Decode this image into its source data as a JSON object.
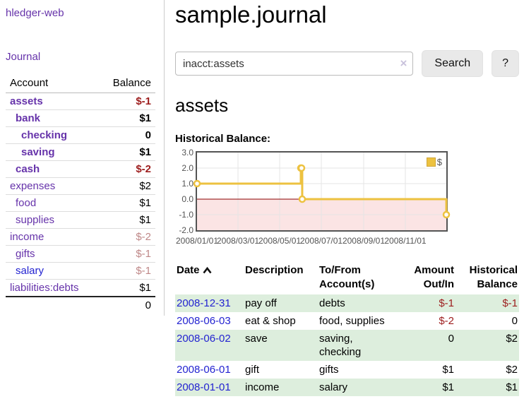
{
  "sidebar": {
    "app_title": "hledger-web",
    "nav": {
      "journal_label": "Journal"
    },
    "accounts_table": {
      "headers": {
        "account": "Account",
        "balance": "Balance"
      },
      "rows": [
        {
          "name": "assets",
          "balance": "$-1",
          "level": 1,
          "bold": true,
          "neg": "strong",
          "link": "purple"
        },
        {
          "name": "bank",
          "balance": "$1",
          "level": 2,
          "bold": true,
          "neg": null,
          "link": "purple"
        },
        {
          "name": "checking",
          "balance": "0",
          "level": 3,
          "bold": true,
          "neg": null,
          "link": "purple"
        },
        {
          "name": "saving",
          "balance": "$1",
          "level": 3,
          "bold": true,
          "neg": null,
          "link": "purple"
        },
        {
          "name": "cash",
          "balance": "$-2",
          "level": 2,
          "bold": true,
          "neg": "strong",
          "link": "purple"
        },
        {
          "name": "expenses",
          "balance": "$2",
          "level": 1,
          "bold": false,
          "neg": null,
          "link": "purple"
        },
        {
          "name": "food",
          "balance": "$1",
          "level": 2,
          "bold": false,
          "neg": null,
          "link": "purple"
        },
        {
          "name": "supplies",
          "balance": "$1",
          "level": 2,
          "bold": false,
          "neg": null,
          "link": "purple"
        },
        {
          "name": "income",
          "balance": "$-2",
          "level": 1,
          "bold": false,
          "neg": "soft",
          "link": "purple"
        },
        {
          "name": "gifts",
          "balance": "$-1",
          "level": 2,
          "bold": false,
          "neg": "soft",
          "link": "purple"
        },
        {
          "name": "salary",
          "balance": "$-1",
          "level": 2,
          "bold": false,
          "neg": "soft",
          "link": "blue"
        },
        {
          "name": "liabilities:debts",
          "balance": "$1",
          "level": 1,
          "bold": false,
          "neg": null,
          "link": "purple"
        }
      ],
      "total": "0"
    }
  },
  "main": {
    "title": "sample.journal",
    "search": {
      "value": "inacct:assets",
      "clear_icon": "×",
      "search_label": "Search",
      "help_label": "?"
    },
    "account_heading": "assets",
    "chart_label": "Historical Balance:"
  },
  "chart_data": {
    "type": "line",
    "step": true,
    "title": "Historical Balance",
    "series": [
      {
        "name": "$",
        "color": "#edc240",
        "points": [
          [
            "2008-01-01",
            1
          ],
          [
            "2008-06-01",
            2
          ],
          [
            "2008-06-02",
            2
          ],
          [
            "2008-06-03",
            0
          ],
          [
            "2008-12-31",
            -1
          ]
        ]
      }
    ],
    "x_range": [
      "2008-01-01",
      "2008-12-31"
    ],
    "x_ticks": [
      "2008/01/01",
      "2008/03/01",
      "2008/05/01",
      "2008/07/01",
      "2008/09/01",
      "2008/11/01"
    ],
    "y_range": [
      -2,
      3
    ],
    "y_ticks": [
      3,
      2,
      1,
      0,
      -1,
      -2
    ],
    "y_tick_labels": [
      "3.0",
      "2.0",
      "1.0",
      "0.0",
      "-1.0",
      "-2.0"
    ],
    "grid": true,
    "grid_color": "#e5e5e5",
    "border_color": "#545454",
    "zero_line_color": "#8b0000",
    "negative_region_color": "#fbe4e4",
    "legend": {
      "label": "$",
      "position": "top-right"
    }
  },
  "transactions": {
    "headers": {
      "date": "Date",
      "description": "Description",
      "accounts": "To/From Account(s)",
      "amount": "Amount Out/In",
      "balance": "Historical Balance"
    },
    "rows": [
      {
        "date": "2008-12-31",
        "description": "pay off",
        "accounts": "debts",
        "amount": "$-1",
        "balance": "$-1",
        "amount_neg": true,
        "balance_neg": true
      },
      {
        "date": "2008-06-03",
        "description": "eat & shop",
        "accounts": "food, supplies",
        "amount": "$-2",
        "balance": "0",
        "amount_neg": true,
        "balance_neg": false
      },
      {
        "date": "2008-06-02",
        "description": "save",
        "accounts": "saving, checking",
        "amount": "0",
        "balance": "$2",
        "amount_neg": false,
        "balance_neg": false
      },
      {
        "date": "2008-06-01",
        "description": "gift",
        "accounts": "gifts",
        "amount": "$1",
        "balance": "$2",
        "amount_neg": false,
        "balance_neg": false
      },
      {
        "date": "2008-01-01",
        "description": "income",
        "accounts": "salary",
        "amount": "$1",
        "balance": "$1",
        "amount_neg": false,
        "balance_neg": false
      }
    ]
  },
  "colors": {
    "link_purple": "#6633aa",
    "link_blue": "#2323d1",
    "negative_strong": "#9d1d1d",
    "negative_soft": "#bf8888",
    "row_green": "#ddeedd",
    "series_gold": "#edc240"
  }
}
